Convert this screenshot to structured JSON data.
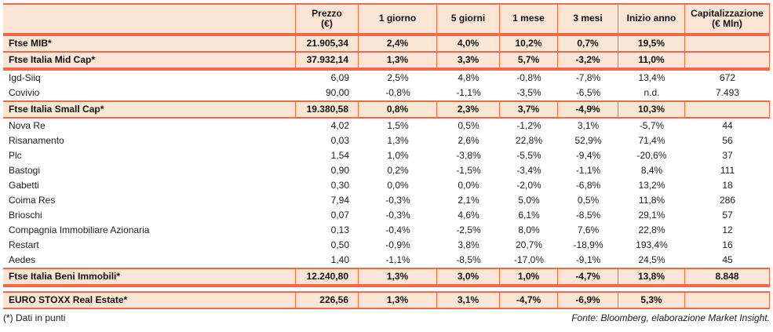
{
  "colors": {
    "accent_line": "#ef6a4b",
    "band_background": "#fbe6d5",
    "text": "#1c1c1c"
  },
  "chart_data": {
    "type": "table",
    "title": "",
    "columns": [
      "",
      "Prezzo (€)",
      "1 giorno",
      "5 giorni",
      "1 mese",
      "3 mesi",
      "Inizio anno",
      "Capitalizzazione (€ Mln)"
    ],
    "header": {
      "name": "",
      "prezzo": {
        "l1": "Prezzo",
        "l2": "(€)"
      },
      "g1": "1 giorno",
      "g5": "5 giorni",
      "m1": "1 mese",
      "m3": "3 mesi",
      "ytd": "Inizio anno",
      "cap": {
        "l1": "Capitalizzazione",
        "l2": "(€ Mln)"
      }
    },
    "rows": [
      {
        "name": "Ftse MIB*",
        "type": "index",
        "prezzo": "21.905,34",
        "g1": "2,4%",
        "g5": "4,0%",
        "m1": "10,2%",
        "m3": "0,7%",
        "ytd": "19,5%",
        "cap": ""
      },
      {
        "name": "Ftse Italia Mid Cap*",
        "type": "index",
        "prezzo": "37.932,14",
        "g1": "1,3%",
        "g5": "3,3%",
        "m1": "5,7%",
        "m3": "-3,2%",
        "ytd": "11,0%",
        "cap": ""
      },
      {
        "name": "Igd-Siiq",
        "type": "stock",
        "prezzo": "6,09",
        "g1": "2,5%",
        "g5": "4,8%",
        "m1": "-0,8%",
        "m3": "-7,8%",
        "ytd": "13,4%",
        "cap": "672"
      },
      {
        "name": "Covivio",
        "type": "stock",
        "prezzo": "90,00",
        "g1": "-0,8%",
        "g5": "-1,1%",
        "m1": "-3,5%",
        "m3": "-6,5%",
        "ytd": "n.d.",
        "cap": "7.493"
      },
      {
        "name": "Ftse Italia Small Cap*",
        "type": "index",
        "prezzo": "19.380,58",
        "g1": "0,8%",
        "g5": "2,3%",
        "m1": "3,7%",
        "m3": "-4,9%",
        "ytd": "10,3%",
        "cap": ""
      },
      {
        "name": "Nova Re",
        "type": "stock",
        "prezzo": "4,02",
        "g1": "1,5%",
        "g5": "0,5%",
        "m1": "-1,2%",
        "m3": "3,1%",
        "ytd": "-5,7%",
        "cap": "44"
      },
      {
        "name": "Risanamento",
        "type": "stock",
        "prezzo": "0,03",
        "g1": "1,3%",
        "g5": "2,6%",
        "m1": "22,8%",
        "m3": "52,9%",
        "ytd": "71,4%",
        "cap": "56"
      },
      {
        "name": "Plc",
        "type": "stock",
        "prezzo": "1,54",
        "g1": "1,0%",
        "g5": "-3,8%",
        "m1": "-5,5%",
        "m3": "-9,4%",
        "ytd": "-20,6%",
        "cap": "37"
      },
      {
        "name": "Bastogi",
        "type": "stock",
        "prezzo": "0,90",
        "g1": "0,2%",
        "g5": "-1,5%",
        "m1": "-3,4%",
        "m3": "-1,1%",
        "ytd": "8,4%",
        "cap": "111"
      },
      {
        "name": "Gabetti",
        "type": "stock",
        "prezzo": "0,30",
        "g1": "0,0%",
        "g5": "0,0%",
        "m1": "-2,0%",
        "m3": "-6,8%",
        "ytd": "13,2%",
        "cap": "18"
      },
      {
        "name": "Coima Res",
        "type": "stock",
        "prezzo": "7,94",
        "g1": "-0,3%",
        "g5": "2,1%",
        "m1": "5,0%",
        "m3": "0,5%",
        "ytd": "11,8%",
        "cap": "286"
      },
      {
        "name": "Brioschi",
        "type": "stock",
        "prezzo": "0,07",
        "g1": "-0,3%",
        "g5": "4,6%",
        "m1": "6,1%",
        "m3": "-8,5%",
        "ytd": "29,1%",
        "cap": "57"
      },
      {
        "name": "Compagnia Immobiliare Azionaria",
        "type": "stock",
        "prezzo": "0,13",
        "g1": "-0,4%",
        "g5": "-2,5%",
        "m1": "8,0%",
        "m3": "7,6%",
        "ytd": "22,8%",
        "cap": "12"
      },
      {
        "name": "Restart",
        "type": "stock",
        "prezzo": "0,50",
        "g1": "-0,9%",
        "g5": "3,8%",
        "m1": "20,7%",
        "m3": "-18,9%",
        "ytd": "193,4%",
        "cap": "16"
      },
      {
        "name": "Aedes",
        "type": "stock",
        "prezzo": "1,40",
        "g1": "-1,1%",
        "g5": "-8,5%",
        "m1": "-17,0%",
        "m3": "-9,1%",
        "ytd": "24,5%",
        "cap": "45"
      },
      {
        "name": "Ftse Italia Beni Immobili*",
        "type": "index",
        "prezzo": "12.240,80",
        "g1": "1,3%",
        "g5": "3,0%",
        "m1": "1,0%",
        "m3": "-4,7%",
        "ytd": "13,8%",
        "cap": "8.848"
      },
      {
        "name": "EURO STOXX Real Estate*",
        "type": "index",
        "prezzo": "226,56",
        "g1": "1,3%",
        "g5": "3,1%",
        "m1": "-4,7%",
        "m3": "-6,9%",
        "ytd": "5,3%",
        "cap": ""
      }
    ],
    "footnote": "(*) Dati in punti",
    "source": "Fonte: Bloomberg, elaborazione Market Insight."
  }
}
